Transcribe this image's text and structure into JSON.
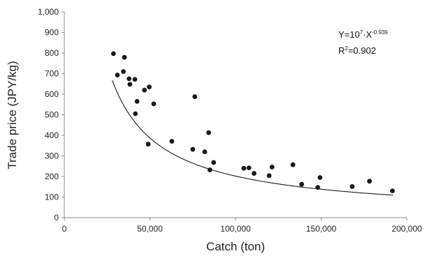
{
  "chart_data": {
    "type": "scatter",
    "title": "",
    "xlabel": "Catch (ton)",
    "ylabel": "Trade price (JPY/kg)",
    "xlim": [
      0,
      200000
    ],
    "ylim": [
      0,
      1000
    ],
    "x_ticks": [
      0,
      50000,
      100000,
      150000,
      200000
    ],
    "x_tick_labels": [
      "0",
      "50,000",
      "100,000",
      "150,000",
      "200,000"
    ],
    "y_ticks": [
      0,
      100,
      200,
      300,
      400,
      500,
      600,
      700,
      800,
      900,
      1000
    ],
    "y_tick_labels": [
      "0",
      "100",
      "200",
      "300",
      "400",
      "500",
      "600",
      "700",
      "800",
      "900",
      "1,000"
    ],
    "grid": false,
    "legend": "none",
    "marker_color": "#1a1a1a",
    "line_color": "#1a1a1a",
    "series": [
      {
        "points": [
          [
            28700,
            797
          ],
          [
            31000,
            693
          ],
          [
            34500,
            710
          ],
          [
            35100,
            779
          ],
          [
            37800,
            675
          ],
          [
            38300,
            648
          ],
          [
            41200,
            672
          ],
          [
            41500,
            505
          ],
          [
            42500,
            565
          ],
          [
            46800,
            620
          ],
          [
            49000,
            357
          ],
          [
            49600,
            635
          ],
          [
            52200,
            553
          ],
          [
            62800,
            371
          ],
          [
            75000,
            332
          ],
          [
            76200,
            588
          ],
          [
            82000,
            320
          ],
          [
            84300,
            413
          ],
          [
            85000,
            232
          ],
          [
            87200,
            268
          ],
          [
            104800,
            240
          ],
          [
            107800,
            242
          ],
          [
            110800,
            215
          ],
          [
            119600,
            204
          ],
          [
            121300,
            246
          ],
          [
            133500,
            257
          ],
          [
            138600,
            162
          ],
          [
            148000,
            147
          ],
          [
            149300,
            195
          ],
          [
            168100,
            151
          ],
          [
            178200,
            177
          ],
          [
            191600,
            130
          ]
        ]
      }
    ],
    "trendline": {
      "type": "power",
      "coefficient": 10000000,
      "exponent": -0.939,
      "x_range": [
        28000,
        192000
      ]
    },
    "annotation": {
      "equation_prefix": "Y=10",
      "equation_exp": "7",
      "equation_mid": "·X",
      "equation_exp2": "-0.939",
      "r2_prefix": "R",
      "r2_exp": "2",
      "r2_value": "=0.902"
    }
  }
}
